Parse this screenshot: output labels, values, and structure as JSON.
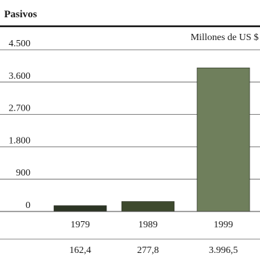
{
  "chart_data": {
    "type": "bar",
    "title": "Pasivos",
    "unit_label": "Millones de US $",
    "categories": [
      "1979",
      "1989",
      "1999"
    ],
    "values": [
      162.4,
      277.8,
      3996.5
    ],
    "value_labels": [
      "162,4",
      "277,8",
      "3.996,5"
    ],
    "ylim": [
      0,
      4500
    ],
    "yticks": [
      {
        "value": 0,
        "label": "0"
      },
      {
        "value": 900,
        "label": "900"
      },
      {
        "value": 1800,
        "label": "1.800"
      },
      {
        "value": 2700,
        "label": "2.700"
      },
      {
        "value": 3600,
        "label": "3.600"
      },
      {
        "value": 4500,
        "label": "4.500"
      }
    ],
    "grid": true,
    "bar_colors": [
      "#2c3524",
      "#3e4a2e",
      "#6f7f5c"
    ]
  }
}
